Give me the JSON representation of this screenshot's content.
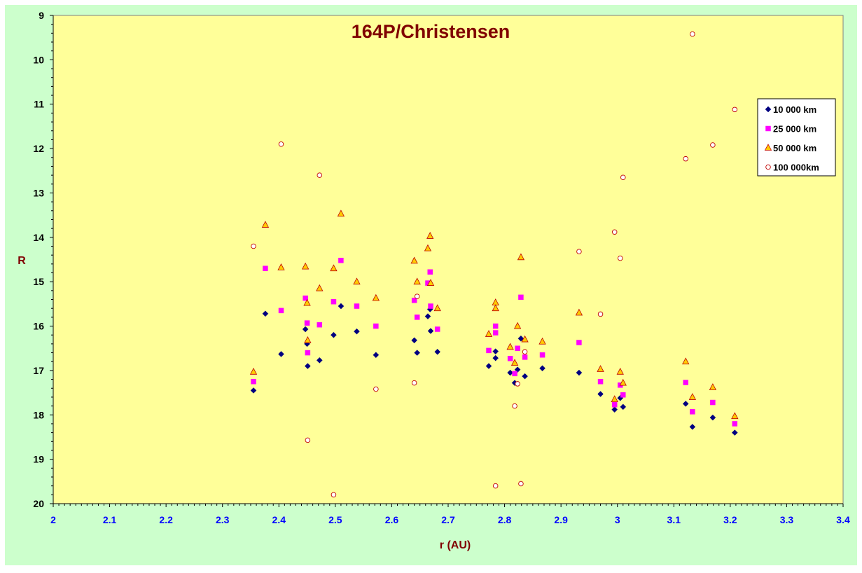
{
  "chart_data": {
    "type": "scatter",
    "title": "164P/Christensen",
    "xlabel": "r (AU)",
    "ylabel": "R",
    "xlim": [
      2,
      3.4
    ],
    "ylim": [
      9,
      20
    ],
    "y_inverted": true,
    "xticks": [
      "2",
      "2.1",
      "2.2",
      "2.3",
      "2.4",
      "2.5",
      "2.6",
      "2.7",
      "2.8",
      "2.9",
      "3",
      "3.1",
      "3.2",
      "3.3",
      "3.4"
    ],
    "yticks": [
      "9",
      "10",
      "11",
      "12",
      "13",
      "14",
      "15",
      "16",
      "17",
      "18",
      "19",
      "20"
    ],
    "grid": false,
    "legend_position": "top-right",
    "colors": {
      "outer_background": "#ccffcc",
      "plot_background": "#ffff99",
      "series_10000": "#000080",
      "series_25000": "#ff00ff",
      "series_50000_fill": "#ffcc00",
      "series_50000_edge": "#c00000",
      "series_100000_edge": "#c00000"
    },
    "series": [
      {
        "name": "10 000 km",
        "marker": "diamond",
        "points": [
          [
            2.355,
            17.45
          ],
          [
            2.376,
            15.72
          ],
          [
            2.404,
            16.63
          ],
          [
            2.447,
            16.07
          ],
          [
            2.45,
            16.4
          ],
          [
            2.451,
            16.9
          ],
          [
            2.472,
            16.77
          ],
          [
            2.497,
            16.2
          ],
          [
            2.51,
            15.55
          ],
          [
            2.538,
            16.12
          ],
          [
            2.572,
            16.65
          ],
          [
            2.64,
            16.32
          ],
          [
            2.645,
            16.6
          ],
          [
            2.664,
            15.78
          ],
          [
            2.668,
            15.62
          ],
          [
            2.669,
            16.11
          ],
          [
            2.681,
            16.58
          ],
          [
            2.772,
            16.9
          ],
          [
            2.784,
            16.57
          ],
          [
            2.784,
            16.72
          ],
          [
            2.81,
            17.05
          ],
          [
            2.818,
            17.28
          ],
          [
            2.823,
            16.98
          ],
          [
            2.829,
            16.28
          ],
          [
            2.836,
            17.13
          ],
          [
            2.867,
            16.95
          ],
          [
            2.932,
            17.05
          ],
          [
            2.97,
            17.53
          ],
          [
            2.995,
            17.88
          ],
          [
            3.005,
            17.62
          ],
          [
            3.01,
            17.82
          ],
          [
            3.121,
            17.75
          ],
          [
            3.133,
            18.27
          ],
          [
            3.169,
            18.06
          ],
          [
            3.208,
            18.4
          ]
        ]
      },
      {
        "name": "25 000 km",
        "marker": "square",
        "points": [
          [
            2.355,
            17.25
          ],
          [
            2.376,
            14.7
          ],
          [
            2.404,
            15.65
          ],
          [
            2.447,
            15.37
          ],
          [
            2.45,
            15.93
          ],
          [
            2.451,
            16.6
          ],
          [
            2.472,
            15.97
          ],
          [
            2.497,
            15.45
          ],
          [
            2.51,
            14.52
          ],
          [
            2.538,
            15.55
          ],
          [
            2.572,
            16.0
          ],
          [
            2.64,
            15.42
          ],
          [
            2.645,
            15.8
          ],
          [
            2.664,
            15.03
          ],
          [
            2.668,
            14.78
          ],
          [
            2.669,
            15.55
          ],
          [
            2.681,
            16.07
          ],
          [
            2.772,
            16.55
          ],
          [
            2.784,
            16.0
          ],
          [
            2.784,
            16.15
          ],
          [
            2.81,
            16.73
          ],
          [
            2.818,
            17.07
          ],
          [
            2.823,
            16.5
          ],
          [
            2.829,
            15.35
          ],
          [
            2.836,
            16.7
          ],
          [
            2.867,
            16.65
          ],
          [
            2.932,
            16.37
          ],
          [
            2.97,
            17.25
          ],
          [
            2.995,
            17.77
          ],
          [
            3.005,
            17.33
          ],
          [
            3.01,
            17.55
          ],
          [
            3.121,
            17.27
          ],
          [
            3.133,
            17.93
          ],
          [
            3.169,
            17.72
          ],
          [
            3.208,
            18.2
          ]
        ]
      },
      {
        "name": "50 000 km",
        "marker": "triangle",
        "points": [
          [
            2.355,
            17.03
          ],
          [
            2.376,
            13.72
          ],
          [
            2.404,
            14.68
          ],
          [
            2.447,
            14.66
          ],
          [
            2.45,
            15.48
          ],
          [
            2.451,
            16.32
          ],
          [
            2.472,
            15.15
          ],
          [
            2.497,
            14.7
          ],
          [
            2.51,
            13.47
          ],
          [
            2.538,
            15.0
          ],
          [
            2.572,
            15.37
          ],
          [
            2.64,
            14.53
          ],
          [
            2.645,
            15.0
          ],
          [
            2.664,
            14.25
          ],
          [
            2.668,
            13.97
          ],
          [
            2.669,
            15.03
          ],
          [
            2.681,
            15.6
          ],
          [
            2.772,
            16.18
          ],
          [
            2.784,
            15.47
          ],
          [
            2.784,
            15.6
          ],
          [
            2.81,
            16.47
          ],
          [
            2.818,
            16.83
          ],
          [
            2.823,
            16.0
          ],
          [
            2.829,
            14.45
          ],
          [
            2.836,
            16.3
          ],
          [
            2.867,
            16.35
          ],
          [
            2.932,
            15.7
          ],
          [
            2.97,
            16.97
          ],
          [
            2.995,
            17.65
          ],
          [
            3.005,
            17.03
          ],
          [
            3.01,
            17.28
          ],
          [
            3.121,
            16.8
          ],
          [
            3.133,
            17.6
          ],
          [
            3.169,
            17.38
          ],
          [
            3.208,
            18.03
          ]
        ]
      },
      {
        "name": "100 000km",
        "marker": "circle",
        "points": [
          [
            2.355,
            14.2
          ],
          [
            2.404,
            11.9
          ],
          [
            2.451,
            18.57
          ],
          [
            2.472,
            12.6
          ],
          [
            2.497,
            19.8
          ],
          [
            2.572,
            17.42
          ],
          [
            2.64,
            17.28
          ],
          [
            2.645,
            15.33
          ],
          [
            2.784,
            19.6
          ],
          [
            2.818,
            17.8
          ],
          [
            2.823,
            17.3
          ],
          [
            2.829,
            19.55
          ],
          [
            2.836,
            16.58
          ],
          [
            2.932,
            14.32
          ],
          [
            2.97,
            15.73
          ],
          [
            2.995,
            13.88
          ],
          [
            3.005,
            14.47
          ],
          [
            3.01,
            12.65
          ],
          [
            3.121,
            12.23
          ],
          [
            3.133,
            9.42
          ],
          [
            3.169,
            11.92
          ],
          [
            3.208,
            11.12
          ]
        ]
      }
    ]
  }
}
